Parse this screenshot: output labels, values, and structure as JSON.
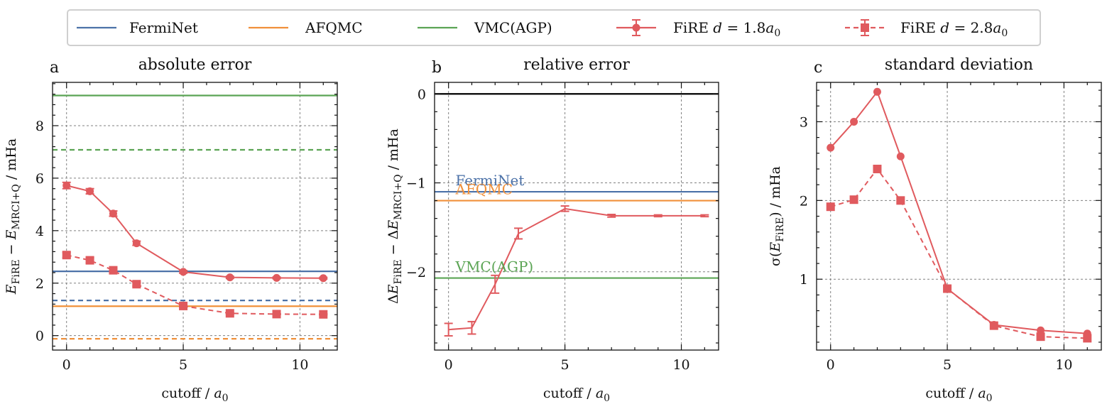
{
  "legend": {
    "placement": "top-center, outside",
    "entries": [
      {
        "label": "FermiNet",
        "color": "#4c72a8",
        "style": "solid",
        "marker": "none"
      },
      {
        "label": "AFQMC",
        "color": "#f0903a",
        "style": "solid",
        "marker": "none"
      },
      {
        "label": "VMC(AGP)",
        "color": "#5ba454",
        "style": "solid",
        "marker": "none"
      },
      {
        "label": "FiRE d = 1.8a₀",
        "color": "#e05a5e",
        "style": "solid",
        "marker": "circle"
      },
      {
        "label": "FiRE d = 2.8a₀",
        "color": "#e05a5e",
        "style": "dashed",
        "marker": "square"
      }
    ]
  },
  "colors": {
    "ferminet": "#4c72a8",
    "afqmc": "#f0903a",
    "vmc": "#5ba454",
    "fire": "#e05a5e",
    "reference": "#000000",
    "grid": "#808080"
  },
  "chart_data": [
    {
      "type": "line",
      "letter": "a",
      "title": "absolute error",
      "xlabel": "cutoff / a₀",
      "ylabel": "E_FiRE − E_MRCI+Q / mHa",
      "xlim": [
        -0.6,
        11.6
      ],
      "ylim": [
        -0.55,
        9.65
      ],
      "xticks": [
        0,
        5,
        10
      ],
      "yticks": [
        0,
        2,
        4,
        6,
        8
      ],
      "grid": true,
      "hlines": [
        {
          "name": "VMC(AGP)",
          "y": 9.15,
          "style": "solid",
          "color": "#5ba454"
        },
        {
          "name": "VMC(AGP)",
          "y": 7.08,
          "style": "dashed",
          "color": "#5ba454"
        },
        {
          "name": "FermiNet",
          "y": 2.45,
          "style": "solid",
          "color": "#4c72a8"
        },
        {
          "name": "FermiNet",
          "y": 1.34,
          "style": "dashed",
          "color": "#4c72a8"
        },
        {
          "name": "AFQMC",
          "y": 1.12,
          "style": "solid",
          "color": "#f0903a"
        },
        {
          "name": "AFQMC",
          "y": -0.12,
          "style": "dashed",
          "color": "#f0903a"
        }
      ],
      "series": [
        {
          "name": "FiRE d = 1.8a₀",
          "style": "solid",
          "marker": "circle",
          "x": [
            0,
            1,
            2,
            3,
            5,
            7,
            9,
            11
          ],
          "y": [
            5.72,
            5.5,
            4.65,
            3.52,
            2.43,
            2.22,
            2.2,
            2.19
          ],
          "err": [
            0.12,
            0.1,
            0.1,
            0.08,
            0.05,
            0.04,
            0.03,
            0.03
          ]
        },
        {
          "name": "FiRE d = 2.8a₀",
          "style": "dashed",
          "marker": "square",
          "x": [
            0,
            1,
            2,
            3,
            5,
            7,
            9,
            11
          ],
          "y": [
            3.07,
            2.87,
            2.49,
            1.96,
            1.13,
            0.85,
            0.82,
            0.81
          ],
          "err": [
            0.1,
            0.1,
            0.08,
            0.07,
            0.04,
            0.02,
            0.02,
            0.02
          ]
        }
      ]
    },
    {
      "type": "line",
      "letter": "b",
      "title": "relative error",
      "xlabel": "cutoff / a₀",
      "ylabel": "ΔE_FiRE − ΔE_MRCI+Q / mHa",
      "xlim": [
        -0.6,
        11.6
      ],
      "ylim": [
        -2.88,
        0.13
      ],
      "xticks": [
        0,
        5,
        10
      ],
      "yticks": [
        0,
        -1,
        -2
      ],
      "grid": true,
      "hlines": [
        {
          "name": "reference",
          "y": 0.0,
          "style": "solid",
          "color": "#000000"
        },
        {
          "name": "FermiNet",
          "y": -1.1,
          "style": "solid",
          "color": "#4c72a8",
          "label": "FermiNet"
        },
        {
          "name": "AFQMC",
          "y": -1.2,
          "style": "solid",
          "color": "#f0903a",
          "label": "AFQMC"
        },
        {
          "name": "VMC(AGP)",
          "y": -2.07,
          "style": "solid",
          "color": "#5ba454",
          "label": "VMC(AGP)"
        }
      ],
      "series": [
        {
          "name": "FiRE",
          "style": "solid",
          "marker": "none",
          "x": [
            0,
            1,
            2,
            3,
            5,
            7,
            9,
            11
          ],
          "y": [
            -2.65,
            -2.63,
            -2.14,
            -1.57,
            -1.29,
            -1.37,
            -1.37,
            -1.37
          ],
          "err": [
            0.07,
            0.07,
            0.1,
            0.06,
            0.03,
            0.015,
            0.01,
            0.01
          ]
        }
      ]
    },
    {
      "type": "line",
      "letter": "c",
      "title": "standard deviation",
      "xlabel": "cutoff / a₀",
      "ylabel": "σ(E_FiRE) / mHa",
      "xlim": [
        -0.6,
        11.6
      ],
      "ylim": [
        0.1,
        3.5
      ],
      "xticks": [
        0,
        5,
        10
      ],
      "yticks": [
        1,
        2,
        3
      ],
      "grid": true,
      "hlines": [],
      "series": [
        {
          "name": "FiRE d = 1.8a₀",
          "style": "solid",
          "marker": "circle",
          "x": [
            0,
            1,
            2,
            3,
            5,
            7,
            9,
            11
          ],
          "y": [
            2.67,
            3.0,
            3.38,
            2.56,
            0.88,
            0.42,
            0.35,
            0.31
          ],
          "err": []
        },
        {
          "name": "FiRE d = 2.8a₀",
          "style": "dashed",
          "marker": "square",
          "x": [
            0,
            1,
            2,
            3,
            5,
            7,
            9,
            11
          ],
          "y": [
            1.92,
            2.01,
            2.4,
            2.0,
            0.88,
            0.41,
            0.27,
            0.25
          ],
          "err": []
        }
      ]
    }
  ]
}
